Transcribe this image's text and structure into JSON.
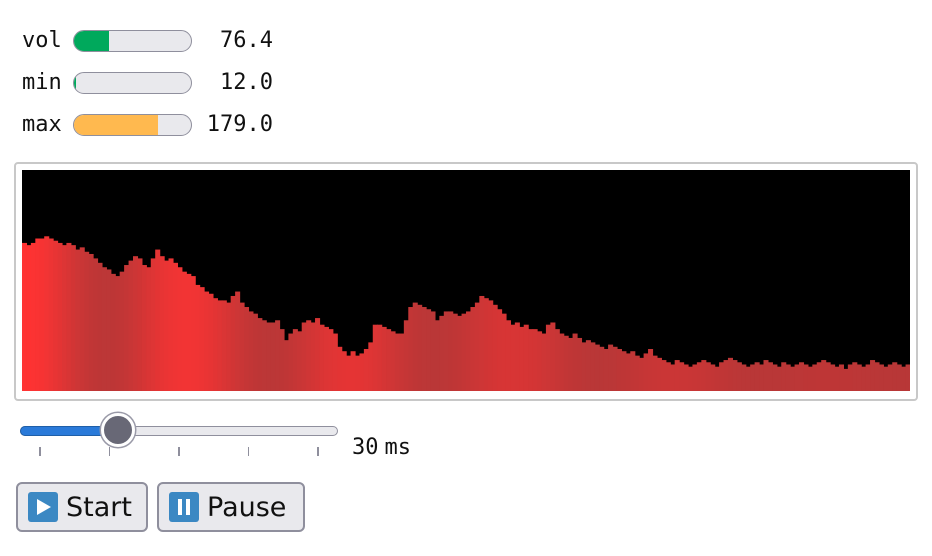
{
  "meters": [
    {
      "id": "vol",
      "label": "vol",
      "value_text": "76.4",
      "fill_fraction": 0.3,
      "color": "#00a95c"
    },
    {
      "id": "min",
      "label": "min",
      "value_text": "12.0",
      "fill_fraction": 0.02,
      "color": "#00a95c"
    },
    {
      "id": "max",
      "label": "max",
      "value_text": "179.0",
      "fill_fraction": 0.72,
      "color": "#ffb94f"
    }
  ],
  "visualizer": {
    "background": "#000000",
    "bar_color_bright": "#ff3333",
    "bar_color_dim": "#a03838",
    "levels": [
      0.67,
      0.66,
      0.67,
      0.69,
      0.69,
      0.7,
      0.69,
      0.68,
      0.67,
      0.66,
      0.67,
      0.66,
      0.64,
      0.65,
      0.63,
      0.62,
      0.6,
      0.58,
      0.56,
      0.55,
      0.53,
      0.52,
      0.54,
      0.57,
      0.59,
      0.61,
      0.6,
      0.57,
      0.56,
      0.6,
      0.64,
      0.61,
      0.59,
      0.6,
      0.58,
      0.56,
      0.54,
      0.53,
      0.52,
      0.48,
      0.47,
      0.45,
      0.44,
      0.42,
      0.41,
      0.41,
      0.4,
      0.43,
      0.45,
      0.4,
      0.38,
      0.36,
      0.35,
      0.33,
      0.32,
      0.31,
      0.31,
      0.32,
      0.28,
      0.23,
      0.26,
      0.28,
      0.27,
      0.31,
      0.32,
      0.31,
      0.33,
      0.3,
      0.29,
      0.28,
      0.26,
      0.2,
      0.18,
      0.16,
      0.18,
      0.16,
      0.17,
      0.19,
      0.22,
      0.3,
      0.3,
      0.29,
      0.28,
      0.27,
      0.26,
      0.26,
      0.32,
      0.38,
      0.4,
      0.39,
      0.38,
      0.37,
      0.36,
      0.32,
      0.34,
      0.36,
      0.36,
      0.35,
      0.34,
      0.35,
      0.36,
      0.38,
      0.4,
      0.43,
      0.42,
      0.41,
      0.39,
      0.37,
      0.35,
      0.32,
      0.3,
      0.31,
      0.29,
      0.3,
      0.28,
      0.28,
      0.27,
      0.26,
      0.3,
      0.31,
      0.28,
      0.26,
      0.25,
      0.24,
      0.26,
      0.24,
      0.22,
      0.23,
      0.22,
      0.21,
      0.2,
      0.19,
      0.21,
      0.2,
      0.19,
      0.18,
      0.17,
      0.18,
      0.16,
      0.15,
      0.17,
      0.19,
      0.16,
      0.15,
      0.14,
      0.13,
      0.12,
      0.14,
      0.13,
      0.12,
      0.11,
      0.12,
      0.13,
      0.14,
      0.13,
      0.12,
      0.11,
      0.13,
      0.14,
      0.15,
      0.14,
      0.13,
      0.12,
      0.11,
      0.12,
      0.13,
      0.12,
      0.14,
      0.13,
      0.12,
      0.11,
      0.13,
      0.12,
      0.11,
      0.12,
      0.13,
      0.12,
      0.11,
      0.12,
      0.13,
      0.14,
      0.13,
      0.12,
      0.11,
      0.12,
      0.1,
      0.12,
      0.13,
      0.12,
      0.11,
      0.12,
      0.14,
      0.13,
      0.12,
      0.11,
      0.12,
      0.13,
      0.12,
      0.11,
      0.12
    ]
  },
  "slider": {
    "value_fraction": 0.28,
    "tick_count": 5,
    "value_text": "30",
    "unit": "ms"
  },
  "buttons": {
    "start_label": "Start",
    "pause_label": "Pause"
  }
}
